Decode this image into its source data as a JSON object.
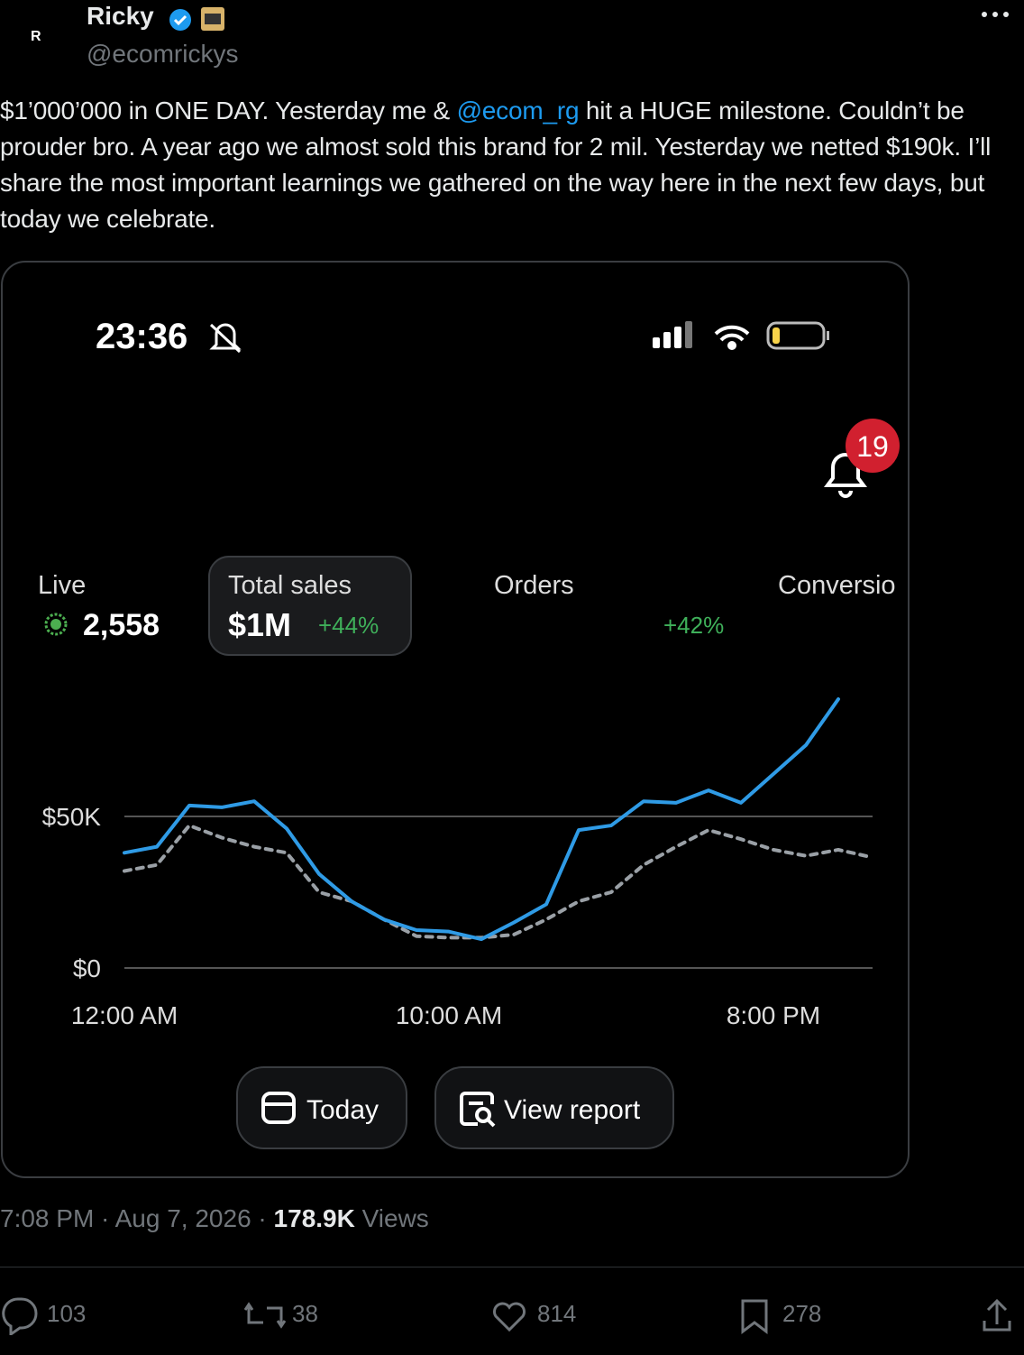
{
  "author": {
    "avatar_initial": "R",
    "name": "Ricky",
    "handle": "@ecomrickys"
  },
  "tweet": {
    "text_parts": [
      "$1’000’000 in ONE DAY. Yesterday me & ",
      "@ecom_rg",
      " hit a HUGE milestone. Couldn’t be prouder bro. A year ago we almost sold this brand for 2 mil. Yesterday we netted $190k. I’ll share the most important learnings we gathered on the way here in the next few days, but today we celebrate."
    ]
  },
  "screenshot": {
    "time": "23:36",
    "notifications": "19",
    "metrics": [
      {
        "label": "Live",
        "value": "2,558"
      },
      {
        "label": "Total sales",
        "value": "$1M",
        "change": "+44%"
      },
      {
        "label": "Orders",
        "change": "+42%"
      },
      {
        "label": "Conversio"
      }
    ],
    "buttons": [
      "Today",
      "View report"
    ]
  },
  "chart_data": {
    "type": "line",
    "x": [
      0,
      1,
      2,
      3,
      4,
      5,
      6,
      7,
      8,
      9,
      10,
      11,
      12,
      13,
      14,
      15,
      16,
      17,
      18,
      19,
      20,
      21,
      22,
      23
    ],
    "xlim": [
      0,
      23
    ],
    "xticks": [
      {
        "value": 0,
        "label": "12:00 AM"
      },
      {
        "value": 10,
        "label": "10:00 AM"
      },
      {
        "value": 20,
        "label": "8:00 PM"
      }
    ],
    "ylim": [
      0,
      100000
    ],
    "yticks": [
      {
        "value": 0,
        "label": "$0"
      },
      {
        "value": 50000,
        "label": "$50K"
      }
    ],
    "grid": true,
    "series": [
      {
        "color": "#2f9be6",
        "dashed": false,
        "values": [
          38000,
          40000,
          53600,
          53000,
          55000,
          46000,
          31000,
          22000,
          16000,
          12500,
          12000,
          9500,
          15000,
          21000,
          45500,
          47000,
          55000,
          54500,
          58600,
          54500,
          64000,
          73500,
          88700,
          null
        ]
      },
      {
        "color": "#9aa0a6",
        "dashed": true,
        "values": [
          32000,
          34000,
          47000,
          43000,
          40000,
          38000,
          25000,
          22000,
          16000,
          10500,
          10000,
          10000,
          11000,
          16000,
          22000,
          25000,
          34000,
          40000,
          45500,
          42500,
          39000,
          37000,
          39000,
          36600
        ]
      }
    ]
  },
  "footer": {
    "time": "7:08 PM",
    "date": "Aug 7, 2026",
    "views": "178.9K",
    "views_label": "Views"
  },
  "actions": {
    "replies": "103",
    "reposts": "38",
    "likes": "814",
    "bookmarks": "278"
  }
}
